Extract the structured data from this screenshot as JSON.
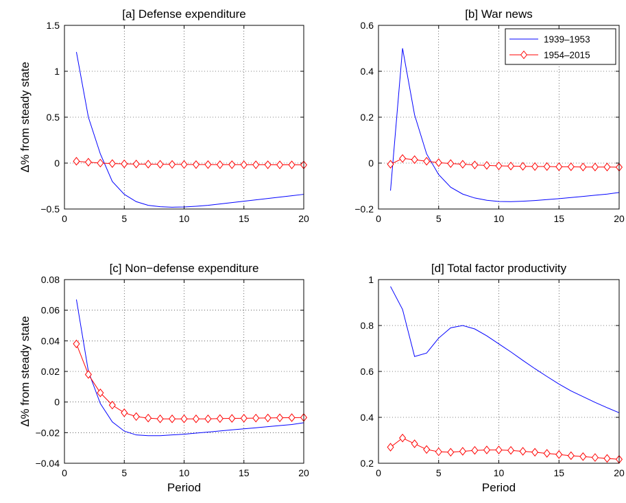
{
  "figure": {
    "ylabel_left": "Δ% from steady state",
    "xlabel_bottom": "Period"
  },
  "legend": {
    "entries": [
      {
        "label": "1939–1953",
        "color": "#0000ff",
        "marker": "none"
      },
      {
        "label": "1954–2015",
        "color": "#ff0000",
        "marker": "diamond"
      }
    ],
    "placement": "top-right of panel b"
  },
  "chart_data": [
    {
      "type": "line",
      "title": "[a] Defense expenditure",
      "xlim": [
        0,
        20
      ],
      "ylim": [
        -0.5,
        1.5
      ],
      "xticks": [
        0,
        5,
        10,
        15,
        20
      ],
      "xtick_labels": [
        "0",
        "5",
        "10",
        "15",
        "20"
      ],
      "yticks": [
        -0.5,
        0,
        0.5,
        1,
        1.5
      ],
      "ytick_labels": [
        "−0.5",
        "0",
        "0.5",
        "1",
        "1.5"
      ],
      "grid": true,
      "xlabel": "",
      "ylabel": "Δ% from steady state",
      "x": [
        1,
        2,
        3,
        4,
        5,
        6,
        7,
        8,
        9,
        10,
        11,
        12,
        13,
        14,
        15,
        16,
        17,
        18,
        19,
        20
      ],
      "series": [
        {
          "name": "1939–1953",
          "color": "#0000ff",
          "marker": "none",
          "values": [
            1.21,
            0.5,
            0.1,
            -0.2,
            -0.34,
            -0.42,
            -0.46,
            -0.475,
            -0.48,
            -0.478,
            -0.47,
            -0.46,
            -0.445,
            -0.43,
            -0.415,
            -0.4,
            -0.385,
            -0.37,
            -0.355,
            -0.34
          ]
        },
        {
          "name": "1954–2015",
          "color": "#ff0000",
          "marker": "diamond",
          "values": [
            0.02,
            0.01,
            0.0,
            -0.005,
            -0.008,
            -0.01,
            -0.012,
            -0.013,
            -0.014,
            -0.015,
            -0.016,
            -0.016,
            -0.017,
            -0.017,
            -0.018,
            -0.018,
            -0.018,
            -0.019,
            -0.019,
            -0.02
          ]
        }
      ]
    },
    {
      "type": "line",
      "title": "[b] War news",
      "xlim": [
        0,
        20
      ],
      "ylim": [
        -0.2,
        0.6
      ],
      "xticks": [
        0,
        5,
        10,
        15,
        20
      ],
      "xtick_labels": [
        "0",
        "5",
        "10",
        "15",
        "20"
      ],
      "yticks": [
        -0.2,
        0,
        0.2,
        0.4,
        0.6
      ],
      "ytick_labels": [
        "−0.2",
        "0",
        "0.2",
        "0.4",
        "0.6"
      ],
      "grid": true,
      "xlabel": "",
      "ylabel": "",
      "x": [
        1,
        2,
        3,
        4,
        5,
        6,
        7,
        8,
        9,
        10,
        11,
        12,
        13,
        14,
        15,
        16,
        17,
        18,
        19,
        20
      ],
      "series": [
        {
          "name": "1939–1953",
          "color": "#0000ff",
          "marker": "none",
          "values": [
            -0.12,
            0.5,
            0.21,
            0.04,
            -0.05,
            -0.105,
            -0.135,
            -0.152,
            -0.162,
            -0.167,
            -0.168,
            -0.166,
            -0.163,
            -0.159,
            -0.155,
            -0.15,
            -0.145,
            -0.14,
            -0.135,
            -0.128
          ]
        },
        {
          "name": "1954–2015",
          "color": "#ff0000",
          "marker": "diamond",
          "values": [
            -0.005,
            0.02,
            0.015,
            0.008,
            0.002,
            -0.002,
            -0.005,
            -0.008,
            -0.01,
            -0.012,
            -0.013,
            -0.014,
            -0.015,
            -0.015,
            -0.016,
            -0.016,
            -0.017,
            -0.017,
            -0.017,
            -0.018
          ]
        }
      ]
    },
    {
      "type": "line",
      "title": "[c] Non−defense expenditure",
      "xlim": [
        0,
        20
      ],
      "ylim": [
        -0.04,
        0.08
      ],
      "xticks": [
        0,
        5,
        10,
        15,
        20
      ],
      "xtick_labels": [
        "0",
        "5",
        "10",
        "15",
        "20"
      ],
      "yticks": [
        -0.04,
        -0.02,
        0,
        0.02,
        0.04,
        0.06,
        0.08
      ],
      "ytick_labels": [
        "−0.04",
        "−0.02",
        "0",
        "0.02",
        "0.04",
        "0.06",
        "0.08"
      ],
      "grid": true,
      "xlabel": "Period",
      "ylabel": "Δ% from steady state",
      "x": [
        1,
        2,
        3,
        4,
        5,
        6,
        7,
        8,
        9,
        10,
        11,
        12,
        13,
        14,
        15,
        16,
        17,
        18,
        19,
        20
      ],
      "series": [
        {
          "name": "1939–1953",
          "color": "#0000ff",
          "marker": "none",
          "values": [
            0.067,
            0.02,
            -0.001,
            -0.013,
            -0.019,
            -0.0215,
            -0.022,
            -0.022,
            -0.0215,
            -0.021,
            -0.0203,
            -0.0196,
            -0.0189,
            -0.0182,
            -0.0175,
            -0.0168,
            -0.0161,
            -0.0154,
            -0.0147,
            -0.0135
          ]
        },
        {
          "name": "1954–2015",
          "color": "#ff0000",
          "marker": "diamond",
          "values": [
            0.038,
            0.018,
            0.006,
            -0.002,
            -0.007,
            -0.0095,
            -0.0105,
            -0.011,
            -0.011,
            -0.011,
            -0.011,
            -0.011,
            -0.0108,
            -0.0107,
            -0.0106,
            -0.0105,
            -0.0104,
            -0.0103,
            -0.0102,
            -0.0101
          ]
        }
      ]
    },
    {
      "type": "line",
      "title": "[d] Total factor productivity",
      "xlim": [
        0,
        20
      ],
      "ylim": [
        0.2,
        1
      ],
      "xticks": [
        0,
        5,
        10,
        15,
        20
      ],
      "xtick_labels": [
        "0",
        "5",
        "10",
        "15",
        "20"
      ],
      "yticks": [
        0.2,
        0.4,
        0.6,
        0.8,
        1
      ],
      "ytick_labels": [
        "0.2",
        "0.4",
        "0.6",
        "0.8",
        "1"
      ],
      "grid": true,
      "xlabel": "Period",
      "ylabel": "",
      "x": [
        1,
        2,
        3,
        4,
        5,
        6,
        7,
        8,
        9,
        10,
        11,
        12,
        13,
        14,
        15,
        16,
        17,
        18,
        19,
        20
      ],
      "series": [
        {
          "name": "1939–1953",
          "color": "#0000ff",
          "marker": "none",
          "values": [
            0.97,
            0.87,
            0.665,
            0.68,
            0.745,
            0.79,
            0.8,
            0.785,
            0.755,
            0.72,
            0.685,
            0.648,
            0.612,
            0.578,
            0.545,
            0.515,
            0.49,
            0.465,
            0.442,
            0.42
          ]
        },
        {
          "name": "1954–2015",
          "color": "#ff0000",
          "marker": "diamond",
          "values": [
            0.27,
            0.31,
            0.285,
            0.26,
            0.25,
            0.248,
            0.252,
            0.256,
            0.258,
            0.258,
            0.256,
            0.252,
            0.248,
            0.243,
            0.238,
            0.233,
            0.229,
            0.225,
            0.221,
            0.217
          ]
        }
      ]
    }
  ]
}
